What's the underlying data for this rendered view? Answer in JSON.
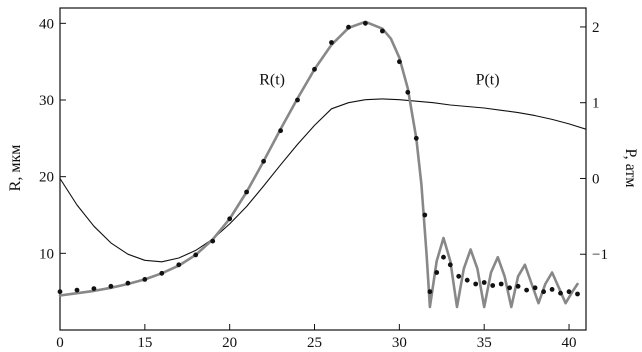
{
  "chart_data": {
    "type": "scatter",
    "title": "",
    "x_ticks": [
      "0",
      "15",
      "20",
      "25",
      "30",
      "35",
      "40"
    ],
    "x_tick_values": [
      0,
      15,
      20,
      25,
      30,
      35,
      40
    ],
    "x_axis_range": [
      10,
      41
    ],
    "y_left": {
      "label": "R, мкм",
      "range": [
        0,
        42
      ],
      "ticks": [
        10,
        20,
        30,
        40
      ],
      "tick_labels": [
        "10",
        "20",
        "30",
        "40"
      ]
    },
    "y_right": {
      "label": "P, атм",
      "range": [
        -2,
        2.25
      ],
      "ticks": [
        -1,
        0,
        1,
        2
      ],
      "tick_labels": [
        "−1",
        "0",
        "1",
        "2"
      ]
    },
    "curve_labels": [
      {
        "text": "R(t)",
        "x": 22.5,
        "y": 32
      },
      {
        "text": "P(t)",
        "x": 35.2,
        "y": 32
      }
    ],
    "series": [
      {
        "name": "R(t)",
        "kind": "points",
        "color": "#111111",
        "axis": "left",
        "x": [
          10.0,
          11.0,
          12.0,
          13.0,
          14.0,
          15.0,
          16.0,
          17.0,
          18.0,
          19.0,
          20.0,
          21.0,
          22.0,
          23.0,
          24.0,
          25.0,
          26.0,
          27.0,
          28.0,
          29.0,
          30.0,
          30.5,
          31.0,
          31.5,
          31.8,
          32.2,
          32.6,
          33.0,
          33.5,
          34.0,
          34.5,
          35.0,
          35.5,
          36.0,
          36.5,
          37.0,
          37.5,
          38.0,
          38.5,
          39.0,
          39.5,
          40.0,
          40.5
        ],
        "y": [
          5.0,
          5.2,
          5.4,
          5.7,
          6.1,
          6.6,
          7.4,
          8.5,
          9.8,
          11.6,
          14.5,
          18.0,
          22.0,
          26.0,
          30.0,
          34.0,
          37.5,
          39.5,
          40.0,
          39.0,
          35.0,
          31.0,
          25.0,
          15.0,
          5.0,
          7.5,
          9.5,
          8.5,
          7.0,
          6.5,
          6.0,
          6.2,
          5.8,
          6.0,
          5.5,
          5.7,
          5.2,
          5.5,
          5.0,
          5.3,
          4.8,
          5.0,
          4.7
        ]
      },
      {
        "name": "R(t) fit",
        "kind": "line",
        "color": "#888888",
        "axis": "left",
        "x": [
          10.0,
          11.0,
          12.0,
          13.0,
          14.0,
          15.0,
          16.0,
          17.0,
          18.0,
          19.0,
          20.0,
          21.0,
          22.0,
          23.0,
          24.0,
          25.0,
          26.0,
          27.0,
          28.0,
          29.0,
          29.5,
          30.0,
          30.5,
          31.0,
          31.3,
          31.6,
          31.8,
          32.2,
          32.6,
          33.0,
          33.4,
          33.8,
          34.2,
          34.6,
          35.0,
          35.4,
          35.8,
          36.2,
          36.6,
          37.0,
          37.4,
          37.8,
          38.2,
          38.6,
          39.0,
          39.4,
          39.8,
          40.2,
          40.5
        ],
        "y": [
          4.5,
          4.8,
          5.1,
          5.5,
          6.0,
          6.6,
          7.4,
          8.4,
          9.8,
          11.8,
          14.5,
          18.0,
          22.0,
          26.2,
          30.2,
          34.0,
          37.2,
          39.4,
          40.2,
          39.3,
          38.0,
          35.5,
          31.5,
          25.0,
          19.0,
          10.0,
          3.0,
          9.0,
          12.0,
          9.0,
          3.0,
          8.0,
          10.5,
          8.0,
          3.0,
          7.5,
          9.5,
          7.0,
          3.0,
          7.0,
          8.5,
          6.0,
          3.5,
          6.0,
          7.5,
          5.5,
          3.5,
          5.0,
          6.0
        ]
      },
      {
        "name": "P(t)",
        "kind": "line",
        "color": "#111111",
        "axis": "right",
        "x": [
          10,
          11,
          12,
          13,
          14,
          15,
          16,
          17,
          18,
          19,
          20,
          21,
          22,
          23,
          24,
          25,
          26,
          27,
          28,
          29,
          30,
          31,
          32,
          33,
          34,
          35,
          36,
          37,
          38,
          39,
          40,
          41
        ],
        "y": [
          0.0,
          -0.35,
          -0.63,
          -0.85,
          -1.0,
          -1.08,
          -1.1,
          -1.05,
          -0.95,
          -0.8,
          -0.6,
          -0.37,
          -0.1,
          0.18,
          0.45,
          0.7,
          0.92,
          1.0,
          1.04,
          1.05,
          1.04,
          1.02,
          1.0,
          0.97,
          0.95,
          0.93,
          0.9,
          0.87,
          0.83,
          0.78,
          0.72,
          0.65
        ]
      }
    ]
  }
}
